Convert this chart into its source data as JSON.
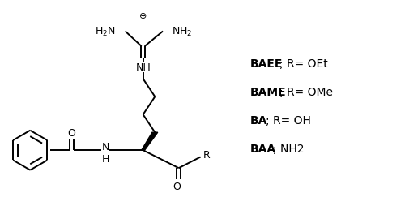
{
  "background_color": "#ffffff",
  "figure_width": 5.0,
  "figure_height": 2.55,
  "dpi": 100,
  "font_size": 9,
  "structure_color": "#000000",
  "label_entries": [
    {
      "bold": "BAEE",
      "normal": "; R= OEt"
    },
    {
      "bold": "BAME",
      "normal": "; R= OMe"
    },
    {
      "bold": "BA",
      "normal": "; R= OH"
    },
    {
      "bold": "BAA",
      "normal": "; NH2"
    }
  ],
  "lw": 1.4
}
